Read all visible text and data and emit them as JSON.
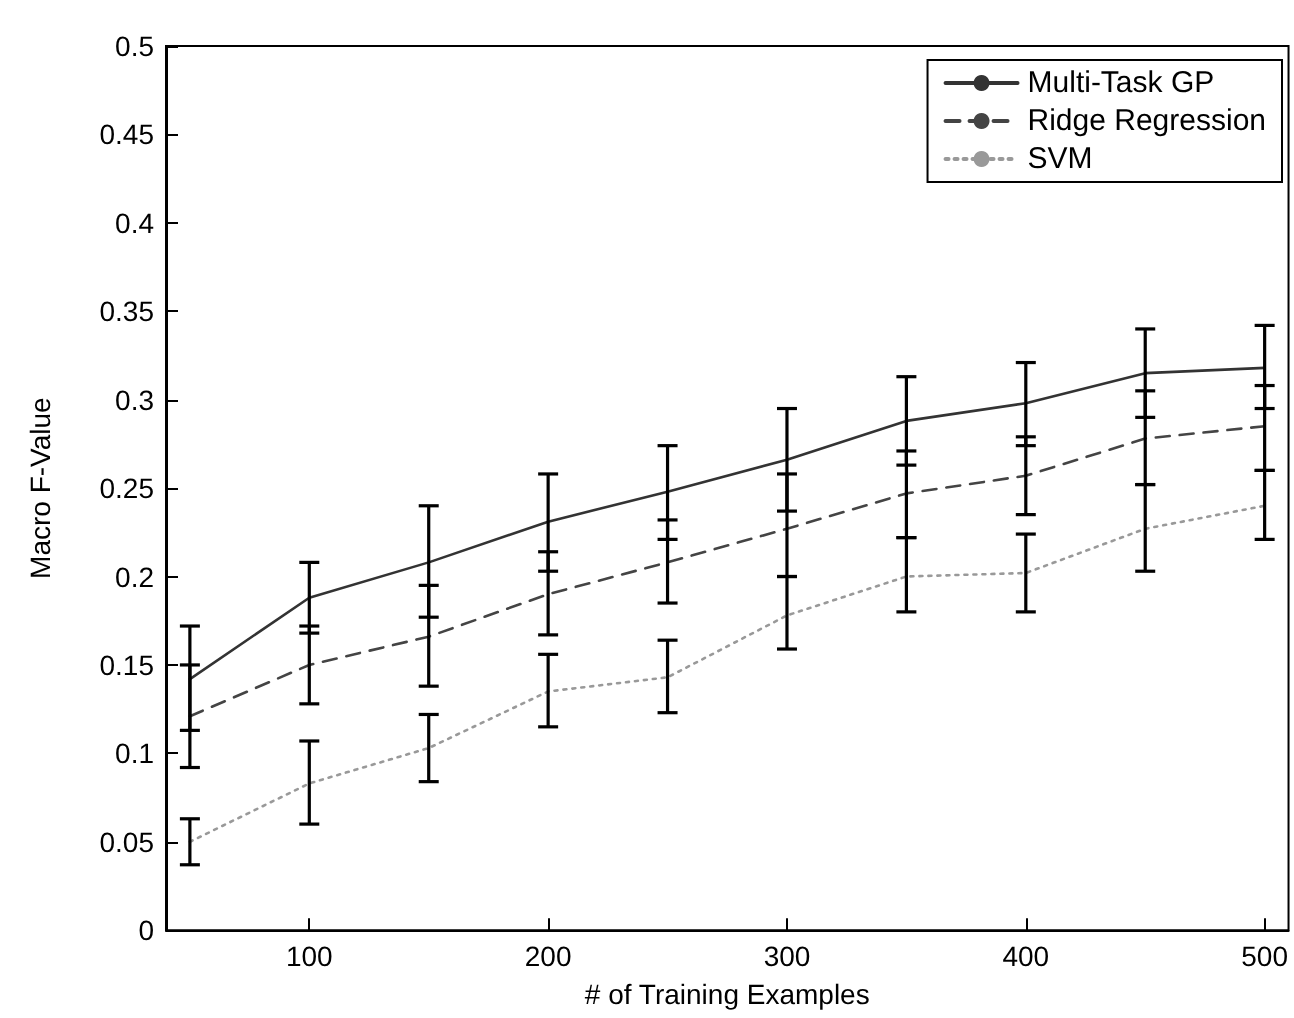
{
  "chart_data": {
    "type": "line",
    "xlabel": "# of Training Examples",
    "ylabel": "Macro F-Value",
    "x": [
      50,
      100,
      150,
      200,
      250,
      300,
      350,
      400,
      450,
      500
    ],
    "xlim": [
      40,
      510
    ],
    "xticks": [
      100,
      200,
      300,
      400,
      500
    ],
    "ylim": [
      0,
      0.5
    ],
    "yticks": [
      0,
      0.05,
      0.1,
      0.15,
      0.2,
      0.25,
      0.3,
      0.35,
      0.4,
      0.45,
      0.5
    ],
    "grid": false,
    "legend": "top right",
    "marker": "none",
    "series": [
      {
        "name": "Multi-Task GP",
        "color": "#333333",
        "line_style": "solid",
        "values": [
          0.142,
          0.188,
          0.208,
          0.231,
          0.248,
          0.266,
          0.288,
          0.298,
          0.315,
          0.318
        ],
        "errors": [
          [
            0.113,
            0.172
          ],
          [
            0.168,
            0.208
          ],
          [
            0.177,
            0.24
          ],
          [
            0.203,
            0.258
          ],
          [
            0.221,
            0.274
          ],
          [
            0.237,
            0.295
          ],
          [
            0.263,
            0.313
          ],
          [
            0.274,
            0.321
          ],
          [
            0.29,
            0.34
          ],
          [
            0.295,
            0.342
          ]
        ]
      },
      {
        "name": "Ridge Regression",
        "color": "#444444",
        "line_style": "dashed",
        "values": [
          0.121,
          0.15,
          0.166,
          0.19,
          0.208,
          0.227,
          0.247,
          0.257,
          0.278,
          0.285
        ],
        "errors": [
          [
            0.092,
            0.15
          ],
          [
            0.128,
            0.172
          ],
          [
            0.138,
            0.195
          ],
          [
            0.167,
            0.214
          ],
          [
            0.185,
            0.232
          ],
          [
            0.2,
            0.258
          ],
          [
            0.222,
            0.271
          ],
          [
            0.235,
            0.279
          ],
          [
            0.252,
            0.305
          ],
          [
            0.26,
            0.308
          ]
        ]
      },
      {
        "name": "SVM",
        "color": "#999999",
        "line_style": "dotted",
        "values": [
          0.05,
          0.083,
          0.103,
          0.135,
          0.143,
          0.178,
          0.2,
          0.202,
          0.227,
          0.24
        ],
        "errors": [
          [
            0.037,
            0.063
          ],
          [
            0.06,
            0.107
          ],
          [
            0.084,
            0.122
          ],
          [
            0.115,
            0.156
          ],
          [
            0.123,
            0.164
          ],
          [
            0.159,
            0.2
          ],
          [
            0.18,
            0.222
          ],
          [
            0.18,
            0.224
          ],
          [
            0.203,
            0.252
          ],
          [
            0.221,
            0.26
          ]
        ]
      }
    ]
  }
}
